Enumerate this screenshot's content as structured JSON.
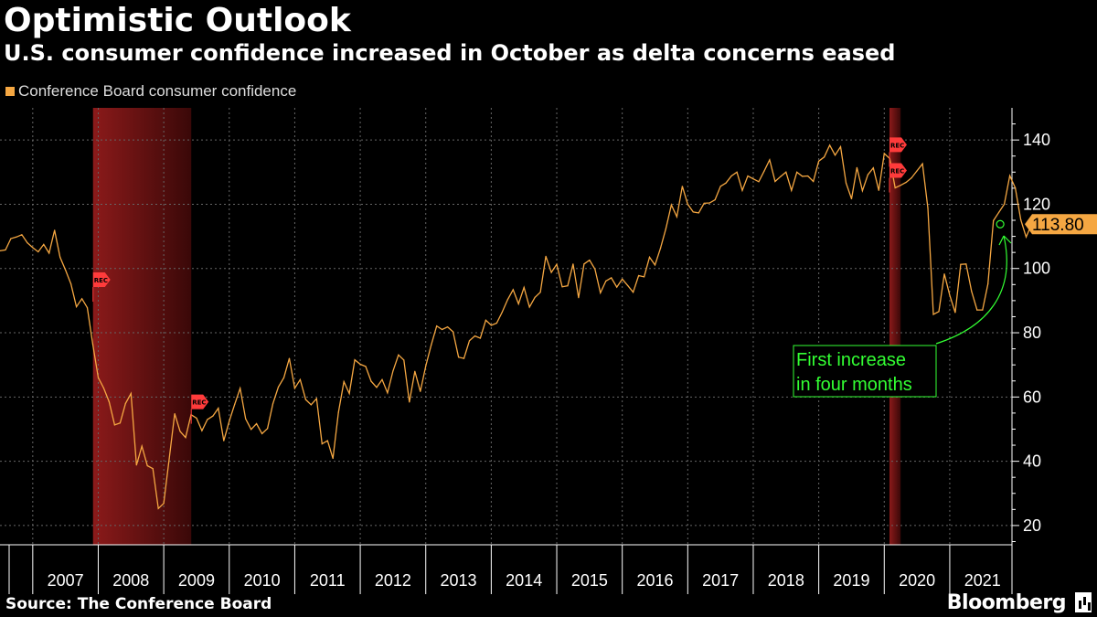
{
  "header": {
    "title": "Optimistic Outlook",
    "subtitle": "U.S. consumer confidence increased in October as delta concerns eased"
  },
  "footer": {
    "source": "Source: The Conference Board",
    "brand": "Bloomberg"
  },
  "colors": {
    "line": "#f5a742",
    "annotation": "#33ff33",
    "recession": "#8b1a1a",
    "flag": "#ff3b3b",
    "grid": "#666666"
  },
  "chart_data": {
    "type": "line",
    "title": "Optimistic Outlook",
    "subtitle": "U.S. consumer confidence increased in October as delta concerns eased",
    "legend": [
      "Conference Board consumer confidence"
    ],
    "legend_position": "top-left",
    "y_axis_side": "right",
    "ylim": [
      14,
      150
    ],
    "xlim": [
      2006.5,
      2021.95
    ],
    "yticks": [
      20,
      40,
      60,
      80,
      100,
      120,
      140
    ],
    "year_labels": [
      "2007",
      "2008",
      "2009",
      "2010",
      "2011",
      "2012",
      "2013",
      "2014",
      "2015",
      "2016",
      "2017",
      "2018",
      "2019",
      "2020",
      "2021"
    ],
    "grid": true,
    "last_value_label": "113.80",
    "annotation": {
      "text_line1": "First increase",
      "text_line2": "in four months",
      "target_x": 2021.77,
      "target_y": 113.8
    },
    "recessions": [
      {
        "start": 2007.92,
        "end": 2009.42,
        "label": "REC"
      },
      {
        "start": 2020.08,
        "end": 2020.25,
        "label": "REC"
      }
    ],
    "rec_flags": [
      {
        "x": 2007.92,
        "y": 96.5,
        "label": "REC"
      },
      {
        "x": 2009.42,
        "y": 58.5,
        "label": "REC"
      },
      {
        "x": 2020.08,
        "y": 138.5,
        "label": "REC"
      },
      {
        "x": 2020.08,
        "y": 130.5,
        "label": "REC"
      }
    ],
    "series": [
      {
        "name": "Conference Board consumer confidence",
        "start": 2006.5,
        "step": 0.0833333,
        "values": [
          105.5,
          105.8,
          109.3,
          109.8,
          110.5,
          108.0,
          106.5,
          105.2,
          107.5,
          104.8,
          111.9,
          103.5,
          99.5,
          95.2,
          88.1,
          90.6,
          87.8,
          76.4,
          66.0,
          62.8,
          58.5,
          51.3,
          51.9,
          58.0,
          61.1,
          38.8,
          44.7,
          38.6,
          37.7,
          25.3,
          26.9,
          40.8,
          54.8,
          49.3,
          47.4,
          54.5,
          53.4,
          49.5,
          53.0,
          54.1,
          56.5,
          46.4,
          52.5,
          57.7,
          62.7,
          53.2,
          49.9,
          51.7,
          48.6,
          50.2,
          57.9,
          63.1,
          66.0,
          72.0,
          62.7,
          65.4,
          59.2,
          57.6,
          59.5,
          45.4,
          46.4,
          40.9,
          55.2,
          64.8,
          61.1,
          71.6,
          70.2,
          69.5,
          64.9,
          63.0,
          65.4,
          61.3,
          68.1,
          73.1,
          71.5,
          58.4,
          68.0,
          61.7,
          69.6,
          76.2,
          82.1,
          81.0,
          81.8,
          80.3,
          72.4,
          72.0,
          77.5,
          79.0,
          78.3,
          83.9,
          82.3,
          83.0,
          86.4,
          90.3,
          93.4,
          89.0,
          94.1,
          88.0,
          91.0,
          92.6,
          103.8,
          98.8,
          101.3,
          94.3,
          94.6,
          101.4,
          90.9,
          101.4,
          102.6,
          99.8,
          92.4,
          96.1,
          97.1,
          94.2,
          96.7,
          94.7,
          92.6,
          97.8,
          97.4,
          103.5,
          101.1,
          106.3,
          112.4,
          119.8,
          116.1,
          125.6,
          120.0,
          117.6,
          117.3,
          120.3,
          120.4,
          121.4,
          125.6,
          126.6,
          128.8,
          130.0,
          124.3,
          128.8,
          127.9,
          127.0,
          130.3,
          133.8,
          127.1,
          128.6,
          130.0,
          124.3,
          130.0,
          128.7,
          128.8,
          127.1,
          133.4,
          134.7,
          138.4,
          135.3,
          137.9,
          126.6,
          121.7,
          131.4,
          124.2,
          129.2,
          131.3,
          124.3,
          135.8,
          134.2,
          125.1,
          125.9,
          126.8,
          128.2,
          130.4,
          132.6,
          118.8,
          85.7,
          86.6,
          98.3,
          91.7,
          86.3,
          101.3,
          101.4,
          92.9,
          87.1,
          87.1,
          95.2,
          114.9,
          117.5,
          120.0,
          128.9,
          125.1,
          115.2,
          109.8,
          113.8
        ]
      }
    ]
  }
}
